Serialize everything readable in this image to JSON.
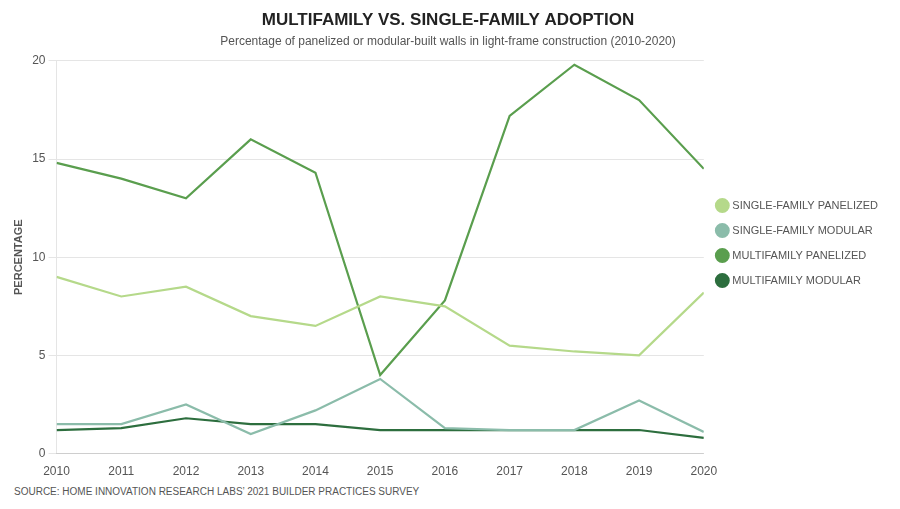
{
  "chart_data": {
    "type": "line",
    "title": "MULTIFAMILY VS. SINGLE-FAMILY ADOPTION",
    "subtitle": "Percentage of panelized or modular-built walls in light-frame construction (2010-2020)",
    "annotations": [
      "SOURCE: HOME INNOVATION RESEARCH LABS’ 2021 BUILDER PRACTICES SURVEY"
    ],
    "ylabel": "PERCENTAGE",
    "x": [
      2010,
      2011,
      2012,
      2013,
      2014,
      2015,
      2016,
      2017,
      2018,
      2019,
      2020
    ],
    "series": [
      {
        "name": "SINGLE-FAMILY PANELIZED",
        "color": "#b5d98a",
        "values": [
          9.0,
          8.0,
          8.5,
          7.0,
          6.5,
          8.0,
          7.5,
          5.5,
          5.2,
          5.0,
          8.2
        ]
      },
      {
        "name": "SINGLE-FAMILY MODULAR",
        "color": "#8bbcaa",
        "values": [
          1.5,
          1.5,
          2.5,
          1.0,
          2.2,
          3.8,
          1.3,
          1.2,
          1.2,
          2.7,
          1.1
        ]
      },
      {
        "name": "MULTIFAMILY PANELIZED",
        "color": "#5a9e4e",
        "values": [
          14.8,
          14.0,
          13.0,
          16.0,
          14.3,
          4.0,
          7.8,
          17.2,
          19.8,
          18.0,
          14.5
        ]
      },
      {
        "name": "MULTIFAMILY MODULAR",
        "color": "#2d6e3e",
        "values": [
          1.2,
          1.3,
          1.8,
          1.5,
          1.5,
          1.2,
          1.2,
          1.2,
          1.2,
          1.2,
          0.8
        ]
      }
    ],
    "xlim": [
      2010,
      2020
    ],
    "xticks": [
      2010,
      2011,
      2012,
      2013,
      2014,
      2015,
      2016,
      2017,
      2018,
      2019,
      2020
    ],
    "ylim": [
      0,
      20
    ],
    "yticks": [
      0,
      5,
      10,
      15,
      20
    ],
    "grid": true,
    "legend": "right"
  }
}
